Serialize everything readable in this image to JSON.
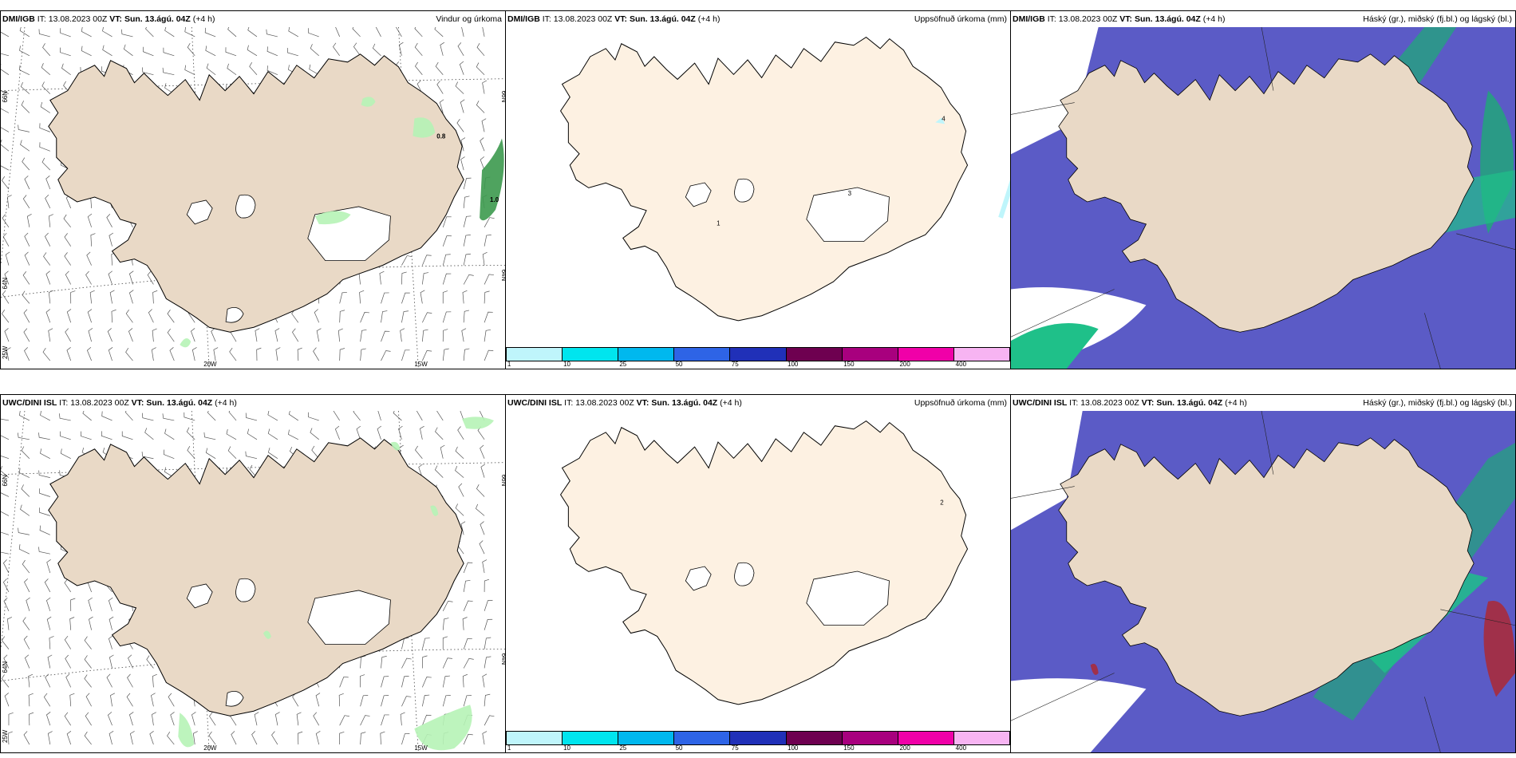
{
  "rows": [
    {
      "model": "DMI/IGB",
      "panels": [
        {
          "model": "DMI/IGB",
          "it_label": "IT:",
          "it": "13.08.2023 00Z",
          "vt_label": "VT:",
          "vt": "Sun. 13.ágú. 04Z",
          "lead": "(+4 h)",
          "right_title": "Vindur og úrkoma",
          "values": [
            "0.8",
            "1.0"
          ],
          "lats": [
            "66N",
            "64N"
          ],
          "lons": [
            "20W",
            "15W",
            "25W"
          ]
        },
        {
          "model": "DMI/IGB",
          "it_label": "IT:",
          "it": "13.08.2023 00Z",
          "vt_label": "VT:",
          "vt": "Sun. 13.ágú. 04Z",
          "lead": "(+4 h)",
          "right_title": "Uppsöfnuð úrkoma (mm)",
          "values": [
            "4",
            "3",
            "1"
          ]
        },
        {
          "model": "DMI/IGB",
          "it_label": "IT:",
          "it": "13.08.2023 00Z",
          "vt_label": "VT:",
          "vt": "Sun. 13.ágú. 04Z",
          "lead": "(+4 h)",
          "right_title": "Háský (gr.), miðský (fj.bl.) og lágský (bl.)"
        }
      ]
    },
    {
      "model": "UWC/DINI ISL",
      "panels": [
        {
          "model": "UWC/DINI ISL",
          "it_label": "IT:",
          "it": "13.08.2023 00Z",
          "vt_label": "VT:",
          "vt": "Sun. 13.ágú. 04Z",
          "lead": "(+4 h)",
          "right_title": "",
          "values": [],
          "lats": [
            "66N",
            "64N"
          ],
          "lons": [
            "20W",
            "15W",
            "25W"
          ]
        },
        {
          "model": "UWC/DINI ISL",
          "it_label": "IT:",
          "it": "13.08.2023 00Z",
          "vt_label": "VT:",
          "vt": "Sun. 13.ágú. 04Z",
          "lead": "(+4 h)",
          "right_title": "Uppsöfnuð úrkoma (mm)",
          "values": [
            "2"
          ]
        },
        {
          "model": "UWC/DINI ISL",
          "it_label": "IT:",
          "it": "13.08.2023 00Z",
          "vt_label": "VT:",
          "vt": "Sun. 13.ágú. 04Z",
          "lead": "(+4 h)",
          "right_title": "Háský (gr.), miðský (fj.bl.) og lágský (bl.)"
        }
      ]
    }
  ],
  "colorbar": {
    "ticks": [
      "1",
      "10",
      "25",
      "50",
      "75",
      "100",
      "150",
      "200",
      "400"
    ],
    "colors": [
      "#bff5fb",
      "#00e5ee",
      "#00b8ee",
      "#2e64e6",
      "#2030b8",
      "#6e0050",
      "#a8007e",
      "#f000a8",
      "#f7b4f2"
    ]
  },
  "colors": {
    "land": "#e9d9c6",
    "land_light": "#fdf1e2",
    "precip": "#b6f3b6",
    "cloud_low": "#5b5bc6",
    "cloud_mid": "#2a9a86",
    "cloud_high": "#1fc089"
  }
}
